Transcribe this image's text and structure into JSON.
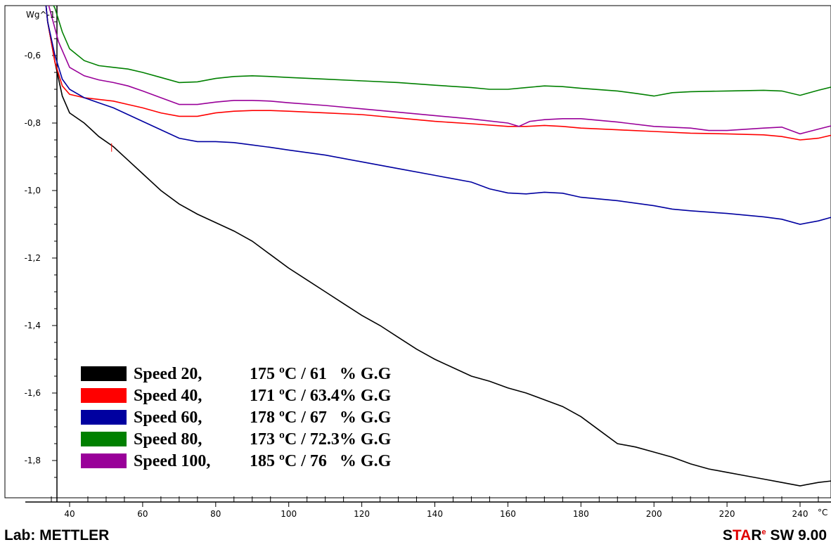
{
  "chart_data": {
    "type": "line",
    "ylabel": "Wg^-1",
    "xunit": "°C",
    "xlim": [
      33,
      250
    ],
    "ylim": [
      -1.9,
      -0.5
    ],
    "x_ticks": [
      40,
      60,
      80,
      100,
      120,
      140,
      160,
      180,
      200,
      220,
      240
    ],
    "y_ticks": [
      "-0,6",
      "-0,8",
      "-1,0",
      "-1,2",
      "-1,4",
      "-1,6",
      "-1,8"
    ],
    "y_tick_values": [
      -0.6,
      -0.8,
      -1.0,
      -1.2,
      -1.4,
      -1.6,
      -1.8
    ],
    "legend_position": "bottom-left",
    "series": [
      {
        "name": "Speed 20,",
        "label": "175 ºC / 61   % G.G",
        "color": "#000000",
        "points": [
          [
            33,
            -0.38
          ],
          [
            34,
            -0.5
          ],
          [
            36,
            -0.62
          ],
          [
            38,
            -0.72
          ],
          [
            40,
            -0.77
          ],
          [
            44,
            -0.8
          ],
          [
            48,
            -0.84
          ],
          [
            52,
            -0.87
          ],
          [
            56,
            -0.91
          ],
          [
            60,
            -0.95
          ],
          [
            65,
            -1.0
          ],
          [
            70,
            -1.04
          ],
          [
            75,
            -1.07
          ],
          [
            80,
            -1.095
          ],
          [
            85,
            -1.12
          ],
          [
            90,
            -1.15
          ],
          [
            95,
            -1.19
          ],
          [
            100,
            -1.23
          ],
          [
            105,
            -1.265
          ],
          [
            110,
            -1.3
          ],
          [
            115,
            -1.335
          ],
          [
            120,
            -1.37
          ],
          [
            125,
            -1.4
          ],
          [
            130,
            -1.435
          ],
          [
            135,
            -1.47
          ],
          [
            140,
            -1.5
          ],
          [
            145,
            -1.525
          ],
          [
            150,
            -1.55
          ],
          [
            155,
            -1.565
          ],
          [
            160,
            -1.585
          ],
          [
            165,
            -1.6
          ],
          [
            170,
            -1.62
          ],
          [
            175,
            -1.64
          ],
          [
            180,
            -1.67
          ],
          [
            185,
            -1.71
          ],
          [
            190,
            -1.75
          ],
          [
            195,
            -1.76
          ],
          [
            200,
            -1.775
          ],
          [
            205,
            -1.79
          ],
          [
            210,
            -1.81
          ],
          [
            215,
            -1.825
          ],
          [
            220,
            -1.835
          ],
          [
            225,
            -1.845
          ],
          [
            230,
            -1.855
          ],
          [
            235,
            -1.865
          ],
          [
            240,
            -1.875
          ],
          [
            245,
            -1.865
          ],
          [
            249,
            -1.86
          ]
        ]
      },
      {
        "name": "Speed 40,",
        "label": "171 ºC / 63.4% G.G",
        "color": "#ff0000",
        "points": [
          [
            33,
            -0.38
          ],
          [
            34,
            -0.5
          ],
          [
            36,
            -0.62
          ],
          [
            38,
            -0.69
          ],
          [
            40,
            -0.715
          ],
          [
            44,
            -0.725
          ],
          [
            48,
            -0.73
          ],
          [
            52,
            -0.735
          ],
          [
            56,
            -0.745
          ],
          [
            60,
            -0.755
          ],
          [
            65,
            -0.77
          ],
          [
            70,
            -0.78
          ],
          [
            75,
            -0.78
          ],
          [
            80,
            -0.77
          ],
          [
            85,
            -0.765
          ],
          [
            90,
            -0.763
          ],
          [
            95,
            -0.763
          ],
          [
            100,
            -0.765
          ],
          [
            110,
            -0.77
          ],
          [
            120,
            -0.775
          ],
          [
            130,
            -0.785
          ],
          [
            140,
            -0.795
          ],
          [
            150,
            -0.802
          ],
          [
            160,
            -0.81
          ],
          [
            165,
            -0.81
          ],
          [
            170,
            -0.807
          ],
          [
            175,
            -0.81
          ],
          [
            180,
            -0.815
          ],
          [
            190,
            -0.82
          ],
          [
            200,
            -0.825
          ],
          [
            210,
            -0.83
          ],
          [
            220,
            -0.832
          ],
          [
            230,
            -0.835
          ],
          [
            235,
            -0.84
          ],
          [
            240,
            -0.85
          ],
          [
            245,
            -0.845
          ],
          [
            249,
            -0.835
          ]
        ]
      },
      {
        "name": "Speed 60,",
        "label": "178 ºC / 67   % G.G",
        "color": "#0000a0",
        "points": [
          [
            33,
            -0.38
          ],
          [
            34,
            -0.5
          ],
          [
            36,
            -0.6
          ],
          [
            38,
            -0.67
          ],
          [
            40,
            -0.7
          ],
          [
            44,
            -0.725
          ],
          [
            48,
            -0.74
          ],
          [
            52,
            -0.755
          ],
          [
            56,
            -0.775
          ],
          [
            60,
            -0.795
          ],
          [
            65,
            -0.82
          ],
          [
            70,
            -0.845
          ],
          [
            75,
            -0.855
          ],
          [
            80,
            -0.855
          ],
          [
            85,
            -0.858
          ],
          [
            90,
            -0.865
          ],
          [
            95,
            -0.872
          ],
          [
            100,
            -0.88
          ],
          [
            110,
            -0.895
          ],
          [
            120,
            -0.915
          ],
          [
            130,
            -0.935
          ],
          [
            140,
            -0.955
          ],
          [
            150,
            -0.975
          ],
          [
            155,
            -0.995
          ],
          [
            160,
            -1.007
          ],
          [
            165,
            -1.01
          ],
          [
            170,
            -1.005
          ],
          [
            175,
            -1.008
          ],
          [
            180,
            -1.02
          ],
          [
            190,
            -1.03
          ],
          [
            200,
            -1.045
          ],
          [
            205,
            -1.055
          ],
          [
            210,
            -1.06
          ],
          [
            220,
            -1.068
          ],
          [
            230,
            -1.078
          ],
          [
            235,
            -1.085
          ],
          [
            240,
            -1.1
          ],
          [
            245,
            -1.09
          ],
          [
            249,
            -1.078
          ]
        ]
      },
      {
        "name": "Speed 80,",
        "label": "173 ºC / 72.3% G.G",
        "color": "#008000",
        "points": [
          [
            33,
            -0.4
          ],
          [
            36,
            -0.46
          ],
          [
            38,
            -0.53
          ],
          [
            40,
            -0.58
          ],
          [
            44,
            -0.615
          ],
          [
            48,
            -0.63
          ],
          [
            52,
            -0.635
          ],
          [
            56,
            -0.64
          ],
          [
            60,
            -0.65
          ],
          [
            65,
            -0.665
          ],
          [
            70,
            -0.68
          ],
          [
            75,
            -0.678
          ],
          [
            80,
            -0.668
          ],
          [
            85,
            -0.662
          ],
          [
            90,
            -0.66
          ],
          [
            95,
            -0.662
          ],
          [
            100,
            -0.665
          ],
          [
            110,
            -0.67
          ],
          [
            120,
            -0.675
          ],
          [
            130,
            -0.68
          ],
          [
            140,
            -0.688
          ],
          [
            150,
            -0.695
          ],
          [
            155,
            -0.7
          ],
          [
            160,
            -0.7
          ],
          [
            165,
            -0.695
          ],
          [
            170,
            -0.69
          ],
          [
            175,
            -0.692
          ],
          [
            180,
            -0.697
          ],
          [
            190,
            -0.705
          ],
          [
            195,
            -0.712
          ],
          [
            200,
            -0.72
          ],
          [
            205,
            -0.71
          ],
          [
            210,
            -0.707
          ],
          [
            220,
            -0.705
          ],
          [
            230,
            -0.703
          ],
          [
            235,
            -0.705
          ],
          [
            240,
            -0.718
          ],
          [
            245,
            -0.703
          ],
          [
            249,
            -0.692
          ]
        ]
      },
      {
        "name": "Speed 100,",
        "label": "185 ºC / 76   % G.G",
        "color": "#990099",
        "points": [
          [
            33,
            -0.4
          ],
          [
            35,
            -0.48
          ],
          [
            37,
            -0.56
          ],
          [
            40,
            -0.635
          ],
          [
            44,
            -0.66
          ],
          [
            48,
            -0.672
          ],
          [
            52,
            -0.68
          ],
          [
            56,
            -0.69
          ],
          [
            60,
            -0.705
          ],
          [
            65,
            -0.725
          ],
          [
            70,
            -0.745
          ],
          [
            75,
            -0.745
          ],
          [
            80,
            -0.738
          ],
          [
            85,
            -0.733
          ],
          [
            90,
            -0.733
          ],
          [
            95,
            -0.735
          ],
          [
            100,
            -0.74
          ],
          [
            110,
            -0.748
          ],
          [
            120,
            -0.758
          ],
          [
            130,
            -0.768
          ],
          [
            140,
            -0.778
          ],
          [
            150,
            -0.788
          ],
          [
            160,
            -0.8
          ],
          [
            163,
            -0.81
          ],
          [
            166,
            -0.795
          ],
          [
            170,
            -0.79
          ],
          [
            175,
            -0.787
          ],
          [
            180,
            -0.787
          ],
          [
            190,
            -0.797
          ],
          [
            200,
            -0.81
          ],
          [
            210,
            -0.815
          ],
          [
            215,
            -0.822
          ],
          [
            220,
            -0.822
          ],
          [
            230,
            -0.815
          ],
          [
            235,
            -0.812
          ],
          [
            240,
            -0.832
          ],
          [
            245,
            -0.818
          ],
          [
            249,
            -0.807
          ]
        ]
      }
    ]
  },
  "footer": {
    "lab": "Lab: METTLER",
    "brand_s": "S",
    "brand_ta": "TA",
    "brand_r": "R",
    "brand_sup": "e",
    "brand_rest": " SW 9.00"
  }
}
